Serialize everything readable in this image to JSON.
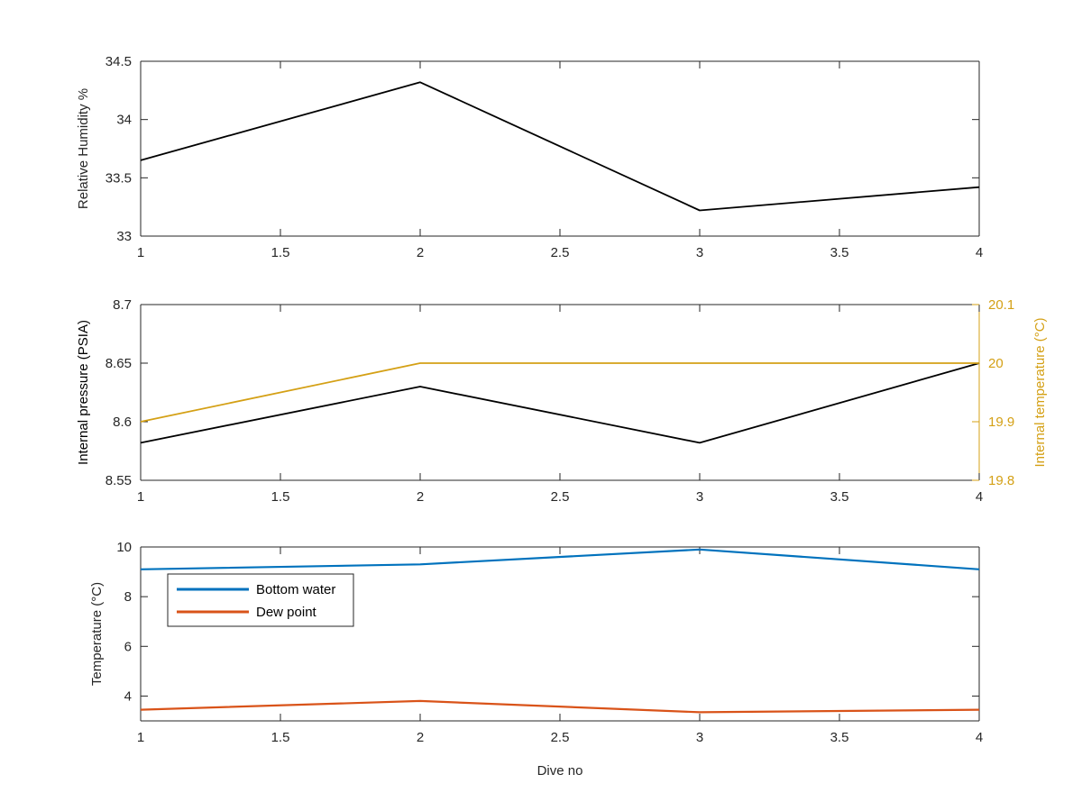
{
  "chart_data": [
    {
      "type": "line",
      "title": "",
      "xlabel": "",
      "ylabel": "Relative Humidity %",
      "xlim": [
        1,
        4
      ],
      "ylim": [
        33,
        34.5
      ],
      "xticks": [
        1,
        1.5,
        2,
        2.5,
        3,
        3.5,
        4
      ],
      "xtick_labels": [
        "1",
        "1.5",
        "2",
        "2.5",
        "3",
        "3.5",
        "4"
      ],
      "yticks": [
        33,
        33.5,
        34,
        34.5
      ],
      "ytick_labels": [
        "33",
        "33.5",
        "34",
        "34.5"
      ],
      "grid": false,
      "series": [
        {
          "x": [
            1,
            2,
            3,
            4
          ],
          "values": [
            33.65,
            34.32,
            33.22,
            33.42
          ],
          "color": "#000000"
        }
      ]
    },
    {
      "type": "line",
      "title": "",
      "xlabel": "",
      "ylabel": "Internal pressure (PSIA)",
      "y2label": "Internal temperature (°C)",
      "xlim": [
        1,
        4
      ],
      "ylim": [
        8.55,
        8.7
      ],
      "y2lim": [
        19.8,
        20.1
      ],
      "xticks": [
        1,
        1.5,
        2,
        2.5,
        3,
        3.5,
        4
      ],
      "xtick_labels": [
        "1",
        "1.5",
        "2",
        "2.5",
        "3",
        "3.5",
        "4"
      ],
      "yticks": [
        8.55,
        8.6,
        8.65,
        8.7
      ],
      "ytick_labels": [
        "8.55",
        "8.6",
        "8.65",
        "8.7"
      ],
      "y2ticks": [
        19.8,
        19.9,
        20,
        20.1
      ],
      "y2tick_labels": [
        "19.8",
        "19.9",
        "20",
        "20.1"
      ],
      "right_axis_color": "#D4A015",
      "grid": false,
      "series": [
        {
          "axis": "left",
          "x": [
            1,
            2,
            3,
            4
          ],
          "values": [
            8.582,
            8.63,
            8.582,
            8.65
          ],
          "color": "#000000"
        },
        {
          "axis": "right",
          "x": [
            1,
            2,
            3,
            4
          ],
          "values": [
            19.9,
            20.0,
            20.0,
            20.0
          ],
          "color": "#D4A015"
        }
      ]
    },
    {
      "type": "line",
      "title": "",
      "xlabel": "Dive no",
      "ylabel": "Temperature (°C)",
      "xlim": [
        1,
        4
      ],
      "ylim": [
        3,
        10
      ],
      "xticks": [
        1,
        1.5,
        2,
        2.5,
        3,
        3.5,
        4
      ],
      "xtick_labels": [
        "1",
        "1.5",
        "2",
        "2.5",
        "3",
        "3.5",
        "4"
      ],
      "yticks": [
        4,
        6,
        8,
        10
      ],
      "ytick_labels": [
        "4",
        "6",
        "8",
        "10"
      ],
      "grid": false,
      "legend_position": "top-left",
      "series": [
        {
          "name": "Bottom water",
          "x": [
            1,
            2,
            3,
            4
          ],
          "values": [
            9.1,
            9.3,
            9.9,
            9.1
          ],
          "color": "#0072BD"
        },
        {
          "name": "Dew point",
          "x": [
            1,
            2,
            3,
            4
          ],
          "values": [
            3.45,
            3.8,
            3.35,
            3.45
          ],
          "color": "#D95319"
        }
      ]
    }
  ]
}
